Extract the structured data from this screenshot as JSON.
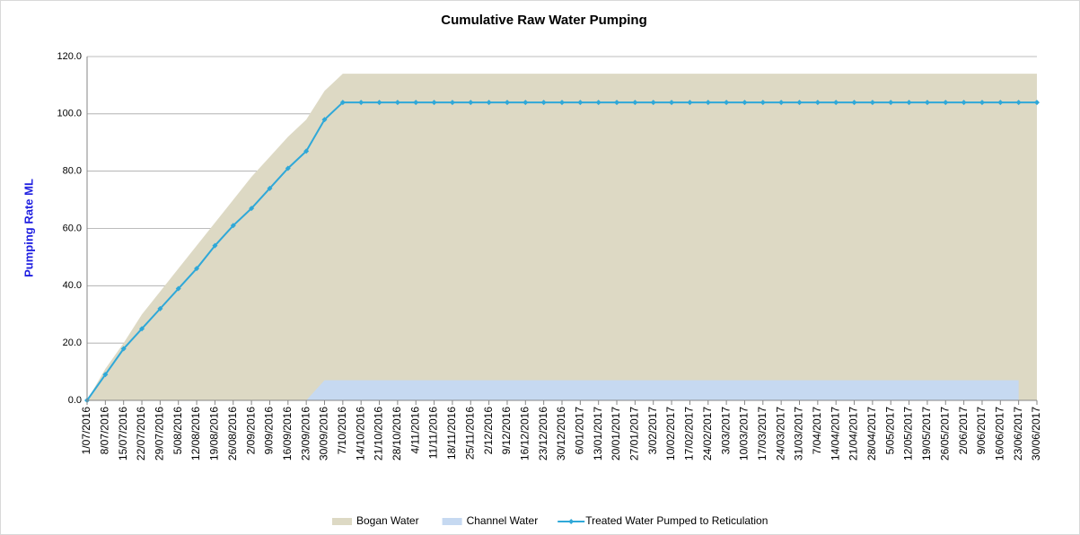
{
  "chart_data": {
    "type": "area-line",
    "title": "Cumulative Raw Water Pumping",
    "y_label": "Pumping Rate ML",
    "categories": [
      "1/07/2016",
      "8/07/2016",
      "15/07/2016",
      "22/07/2016",
      "29/07/2016",
      "5/08/2016",
      "12/08/2016",
      "19/08/2016",
      "26/08/2016",
      "2/09/2016",
      "9/09/2016",
      "16/09/2016",
      "23/09/2016",
      "30/09/2016",
      "7/10/2016",
      "14/10/2016",
      "21/10/2016",
      "28/10/2016",
      "4/11/2016",
      "11/11/2016",
      "18/11/2016",
      "25/11/2016",
      "2/12/2016",
      "9/12/2016",
      "16/12/2016",
      "23/12/2016",
      "30/12/2016",
      "6/01/2017",
      "13/01/2017",
      "20/01/2017",
      "27/01/2017",
      "3/02/2017",
      "10/02/2017",
      "17/02/2017",
      "24/02/2017",
      "3/03/2017",
      "10/03/2017",
      "17/03/2017",
      "24/03/2017",
      "31/03/2017",
      "7/04/2017",
      "14/04/2017",
      "21/04/2017",
      "28/04/2017",
      "5/05/2017",
      "12/05/2017",
      "19/05/2017",
      "26/05/2017",
      "2/06/2017",
      "9/06/2017",
      "16/06/2017",
      "23/06/2017",
      "30/06/2017"
    ],
    "series": [
      {
        "name": "Bogan Water",
        "kind": "area",
        "color": "#ddd9c4",
        "values": [
          0,
          11,
          20,
          30,
          38,
          46,
          54,
          62,
          70,
          78,
          85,
          92,
          98,
          108,
          114,
          114,
          114,
          114,
          114,
          114,
          114,
          114,
          114,
          114,
          114,
          114,
          114,
          114,
          114,
          114,
          114,
          114,
          114,
          114,
          114,
          114,
          114,
          114,
          114,
          114,
          114,
          114,
          114,
          114,
          114,
          114,
          114,
          114,
          114,
          114,
          114,
          114,
          114
        ]
      },
      {
        "name": "Channel Water",
        "kind": "area",
        "color": "#c6d9f1",
        "values": [
          0,
          0,
          0,
          0,
          0,
          0,
          0,
          0,
          0,
          0,
          0,
          0,
          0,
          7,
          7,
          7,
          7,
          7,
          7,
          7,
          7,
          7,
          7,
          7,
          7,
          7,
          7,
          7,
          7,
          7,
          7,
          7,
          7,
          7,
          7,
          7,
          7,
          7,
          7,
          7,
          7,
          7,
          7,
          7,
          7,
          7,
          7,
          7,
          7,
          7,
          7,
          7,
          null
        ]
      },
      {
        "name": "Treated Water Pumped to Reticulation",
        "kind": "line",
        "color": "#2fa8d8",
        "values": [
          0,
          9,
          18,
          25,
          32,
          39,
          46,
          54,
          61,
          67,
          74,
          81,
          87,
          98,
          104,
          104,
          104,
          104,
          104,
          104,
          104,
          104,
          104,
          104,
          104,
          104,
          104,
          104,
          104,
          104,
          104,
          104,
          104,
          104,
          104,
          104,
          104,
          104,
          104,
          104,
          104,
          104,
          104,
          104,
          104,
          104,
          104,
          104,
          104,
          104,
          104,
          104,
          104
        ]
      }
    ],
    "ylim": [
      0,
      120
    ],
    "yticks": [
      {
        "value": 0,
        "label": "0.0"
      },
      {
        "value": 20,
        "label": "20.0"
      },
      {
        "value": 40,
        "label": "40.0"
      },
      {
        "value": 60,
        "label": "60.0"
      },
      {
        "value": 80,
        "label": "80.0"
      },
      {
        "value": 100,
        "label": "100.0"
      },
      {
        "value": 120,
        "label": "120.0"
      }
    ],
    "grid": true,
    "legend": "bottom"
  }
}
